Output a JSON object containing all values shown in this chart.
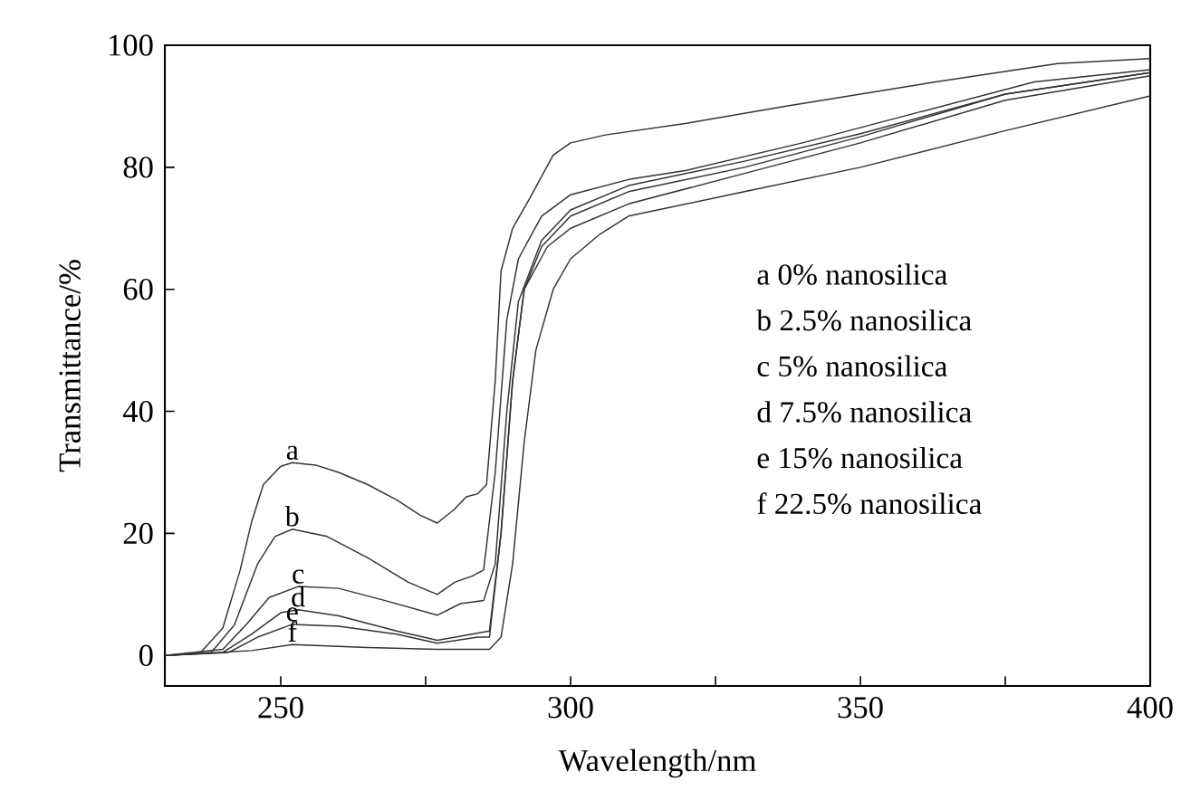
{
  "chart_data": {
    "type": "line",
    "xlabel": "Wavelength/nm",
    "ylabel": "Transmittance/%",
    "xlim": [
      230,
      400
    ],
    "ylim": [
      -5,
      100
    ],
    "xticks": [
      250,
      300,
      350,
      400,
      {
        "value": 275,
        "label": null
      },
      {
        "value": 325,
        "label": null
      },
      {
        "value": 375,
        "label": null
      }
    ],
    "yticks": [
      0,
      20,
      40,
      60,
      80,
      100
    ],
    "grid": false,
    "marker": "none",
    "line_style": "solid",
    "series": [
      {
        "name": "a",
        "color": "#333333",
        "x": [
          230,
          236,
          240,
          243,
          245,
          247,
          250,
          252,
          256,
          260,
          265,
          270,
          274,
          277,
          280,
          282,
          284,
          285.5,
          287,
          288,
          290,
          293,
          297,
          300,
          306,
          320,
          337,
          350,
          363,
          384,
          400
        ],
        "values": [
          0,
          0.3,
          4.5,
          14,
          22,
          28,
          31,
          31.6,
          31.2,
          30,
          28,
          25.5,
          23,
          21.7,
          24,
          26,
          26.5,
          28,
          45,
          63,
          70,
          75,
          82,
          84,
          85.3,
          87.2,
          90,
          92,
          94,
          97,
          97.8
        ]
      },
      {
        "name": "b",
        "color": "#333333",
        "x": [
          230,
          238,
          242,
          246,
          249,
          252,
          258,
          265,
          272,
          277,
          280,
          283,
          285,
          287,
          289,
          291,
          295,
          300,
          310,
          320,
          340,
          360,
          380,
          400
        ],
        "values": [
          0,
          0.5,
          5,
          15,
          19.5,
          20.7,
          19.5,
          16,
          12,
          10,
          12,
          13,
          14,
          30,
          55,
          65,
          72,
          75.5,
          78,
          79.5,
          84,
          89,
          94,
          96
        ]
      },
      {
        "name": "c",
        "color": "#333333",
        "x": [
          230,
          240,
          244,
          248,
          253,
          260,
          268,
          277,
          281,
          285,
          287,
          289,
          291,
          295,
          300,
          310,
          330,
          350,
          375,
          400
        ],
        "values": [
          0,
          1,
          5,
          9.5,
          11.3,
          11,
          9,
          6.6,
          8.5,
          9,
          15,
          40,
          58,
          68,
          73,
          77,
          81,
          85.5,
          92,
          95.5
        ]
      },
      {
        "name": "d",
        "color": "#333333",
        "x": [
          230,
          240,
          245,
          250,
          253,
          260,
          270,
          277,
          283,
          286,
          288,
          290,
          292,
          295,
          300,
          310,
          330,
          350,
          375,
          400
        ],
        "values": [
          0,
          0.5,
          3.5,
          7,
          7.5,
          6.5,
          4,
          2.5,
          3.5,
          4,
          20,
          45,
          60,
          67,
          72,
          76,
          80,
          85,
          92,
          95.5
        ]
      },
      {
        "name": "e",
        "color": "#333333",
        "x": [
          230,
          241,
          246,
          252,
          260,
          270,
          277,
          284,
          286,
          288,
          290,
          292,
          296,
          300,
          310,
          330,
          350,
          375,
          400
        ],
        "values": [
          0,
          0.5,
          3,
          5.1,
          4.8,
          3.5,
          2,
          3,
          3,
          20,
          45,
          60,
          67,
          70,
          74,
          79,
          84,
          91,
          95
        ]
      },
      {
        "name": "f",
        "color": "#333333",
        "x": [
          230,
          245,
          252,
          265,
          277,
          286,
          288,
          290,
          292,
          294,
          297,
          300,
          305,
          310,
          330,
          350,
          375,
          400
        ],
        "values": [
          0,
          0.8,
          1.8,
          1.3,
          1,
          1,
          3,
          15,
          35,
          50,
          60,
          65,
          69,
          72,
          76,
          80,
          86,
          91.7
        ]
      }
    ],
    "annotations": [
      "a   0% nanosilica",
      "b   2.5% nanosilica",
      "c   5% nanosilica",
      "d   7.5% nanosilica",
      "e   15% nanosilica",
      "f   22.5% nanosilica"
    ]
  }
}
